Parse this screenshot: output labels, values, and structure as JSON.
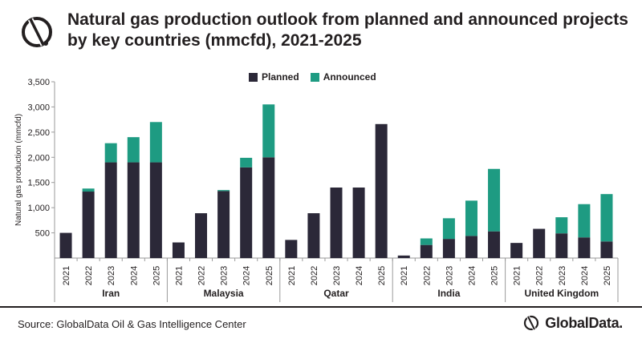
{
  "title_lines": [
    "Natural gas production outlook from planned and announced projects",
    "by key countries (mmcfd), 2021-2025"
  ],
  "source": "Source: GlobalData Oil & Gas Intelligence Center",
  "brand": "GlobalData.",
  "colors": {
    "planned": "#2b2838",
    "announced": "#1e9b82",
    "text": "#231f20"
  },
  "chart_data": {
    "type": "bar",
    "stacked": true,
    "title": "Natural gas production outlook from planned and announced projects by key countries (mmcfd), 2021-2025",
    "ylabel": "Natural gas  production (mmcfd)",
    "ylim": [
      0,
      3500
    ],
    "yticks": [
      500,
      1000,
      1500,
      2000,
      2500,
      3000,
      3500
    ],
    "ytick_labels": [
      "500",
      "1,000",
      "1,500",
      "2,000",
      "2,500",
      "3,000",
      "3,500"
    ],
    "legend": [
      "Planned",
      "Announced"
    ],
    "legend_position": "top-center",
    "years": [
      "2021",
      "2022",
      "2023",
      "2024",
      "2025"
    ],
    "groups": [
      {
        "country": "Iran",
        "planned": [
          500,
          1320,
          1900,
          1900,
          1900
        ],
        "announced": [
          0,
          60,
          380,
          500,
          800
        ]
      },
      {
        "country": "Malaysia",
        "planned": [
          310,
          890,
          1330,
          1800,
          2000
        ],
        "announced": [
          0,
          0,
          20,
          190,
          1050
        ]
      },
      {
        "country": "Qatar",
        "planned": [
          360,
          890,
          1400,
          1400,
          2660
        ],
        "announced": [
          0,
          0,
          0,
          0,
          0
        ]
      },
      {
        "country": "India",
        "planned": [
          50,
          260,
          380,
          440,
          530
        ],
        "announced": [
          0,
          130,
          410,
          700,
          1240
        ]
      },
      {
        "country": "United Kingdom",
        "planned": [
          300,
          580,
          490,
          410,
          330
        ],
        "announced": [
          0,
          0,
          320,
          660,
          940
        ]
      }
    ]
  }
}
